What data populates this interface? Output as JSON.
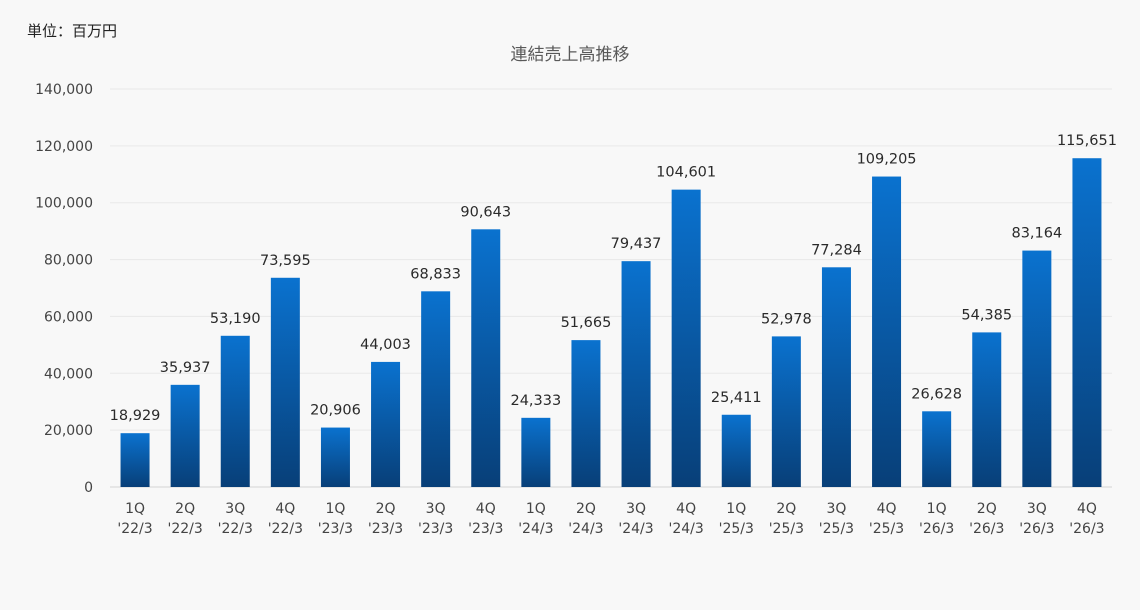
{
  "unit_label": "単位：百万円",
  "chart_data": {
    "type": "bar",
    "title": "連結売上高推移",
    "xlabel": "",
    "ylabel": "",
    "ylim": [
      0,
      140000
    ],
    "yticks": [
      0,
      20000,
      40000,
      60000,
      80000,
      100000,
      120000,
      140000
    ],
    "ytick_labels": [
      "0",
      "20,000",
      "40,000",
      "60,000",
      "80,000",
      "100,000",
      "120,000",
      "140,000"
    ],
    "grid": true,
    "legend": "none",
    "colors": {
      "bar_top": "#0a72cf",
      "bar_bottom": "#083f78"
    },
    "categories": [
      {
        "q": "1Q",
        "fy": "'22/3"
      },
      {
        "q": "2Q",
        "fy": "'22/3"
      },
      {
        "q": "3Q",
        "fy": "'22/3"
      },
      {
        "q": "4Q",
        "fy": "'22/3"
      },
      {
        "q": "1Q",
        "fy": "'23/3"
      },
      {
        "q": "2Q",
        "fy": "'23/3"
      },
      {
        "q": "3Q",
        "fy": "'23/3"
      },
      {
        "q": "4Q",
        "fy": "'23/3"
      },
      {
        "q": "1Q",
        "fy": "'24/3"
      },
      {
        "q": "2Q",
        "fy": "'24/3"
      },
      {
        "q": "3Q",
        "fy": "'24/3"
      },
      {
        "q": "4Q",
        "fy": "'24/3"
      },
      {
        "q": "1Q",
        "fy": "'25/3"
      },
      {
        "q": "2Q",
        "fy": "'25/3"
      },
      {
        "q": "3Q",
        "fy": "'25/3"
      },
      {
        "q": "4Q",
        "fy": "'25/3"
      },
      {
        "q": "1Q",
        "fy": "'26/3"
      },
      {
        "q": "2Q",
        "fy": "'26/3"
      },
      {
        "q": "3Q",
        "fy": "'26/3"
      },
      {
        "q": "4Q",
        "fy": "'26/3"
      }
    ],
    "values": [
      18929,
      35937,
      53190,
      73595,
      20906,
      44003,
      68833,
      90643,
      24333,
      51665,
      79437,
      104601,
      25411,
      52978,
      77284,
      109205,
      26628,
      54385,
      83164,
      115651
    ],
    "data_labels": [
      "18,929",
      "35,937",
      "53,190",
      "73,595",
      "20,906",
      "44,003",
      "68,833",
      "90,643",
      "24,333",
      "51,665",
      "79,437",
      "104,601",
      "25,411",
      "52,978",
      "77,284",
      "109,205",
      "26,628",
      "54,385",
      "83,164",
      "115,651"
    ]
  }
}
